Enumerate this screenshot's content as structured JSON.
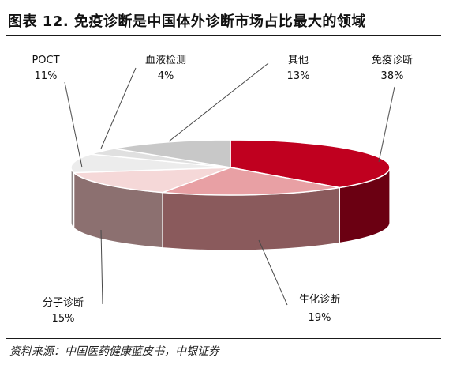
{
  "header": {
    "title": "图表 12. 免疫诊断是中国体外诊断市场占比最大的领域"
  },
  "footer": {
    "source": "资料来源：中国医药健康蓝皮书，中银证券"
  },
  "chart_data": {
    "type": "pie",
    "style": "3d",
    "slices": [
      {
        "label": "免疫诊断",
        "value": 38,
        "display": "38%",
        "color": "#c0001f",
        "side": "#6b0012"
      },
      {
        "label": "生化诊断",
        "value": 19,
        "display": "19%",
        "color": "#e8a0a4",
        "side": "#8a5a5c"
      },
      {
        "label": "分子诊断",
        "value": 15,
        "display": "15%",
        "color": "#f5d8d8",
        "side": "#8c7070"
      },
      {
        "label": "POCT",
        "value": 11,
        "display": "11%",
        "color": "#ececec",
        "side": "#8f8888"
      },
      {
        "label": "血液检测",
        "value": 4,
        "display": "4%",
        "color": "#e0e0e0",
        "side": "#8a8484"
      },
      {
        "label": "其他",
        "value": 13,
        "display": "13%",
        "color": "#c8c8c8",
        "side": "#7e7878"
      }
    ]
  }
}
